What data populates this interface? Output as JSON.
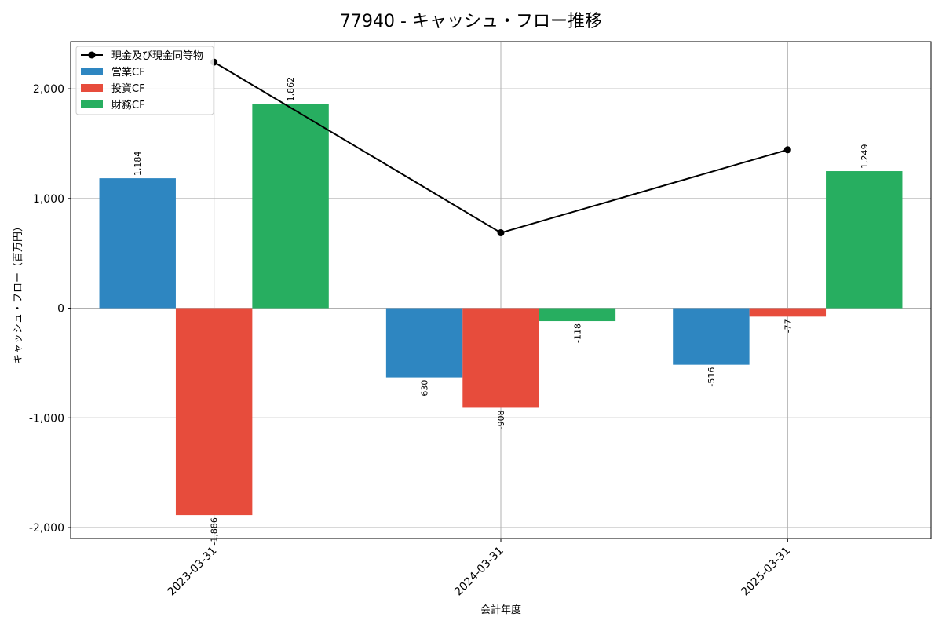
{
  "chart_data": {
    "type": "bar",
    "title": "77940 - キャッシュ・フロー推移",
    "xlabel": "会計年度",
    "ylabel": "キャッシュ・フロー（百万円）",
    "categories": [
      "2023-03-31",
      "2024-03-31",
      "2025-03-31"
    ],
    "ylim": [
      -2100,
      2430
    ],
    "yticks": [
      -2000,
      -1000,
      0,
      1000,
      2000
    ],
    "ytick_labels": [
      "-2,000",
      "-1,000",
      "0",
      "1,000",
      "2,000"
    ],
    "grid": true,
    "legend_position": "top-left",
    "series": [
      {
        "name": "営業CF",
        "color": "#2e86c1",
        "values": [
          1184,
          -630,
          -516
        ],
        "labels": [
          "1,184",
          "-630",
          "-516"
        ]
      },
      {
        "name": "投資CF",
        "color": "#e74c3c",
        "values": [
          -1886,
          -908,
          -77
        ],
        "labels": [
          "-1,886",
          "-908",
          "-77"
        ]
      },
      {
        "name": "財務CF",
        "color": "#27ae60",
        "values": [
          1862,
          -118,
          1249
        ],
        "labels": [
          "1,862",
          "-118",
          "1,249"
        ]
      }
    ],
    "line": {
      "name": "現金及び現金同等物",
      "color": "#000000",
      "values": [
        2243,
        687,
        1444
      ]
    }
  }
}
